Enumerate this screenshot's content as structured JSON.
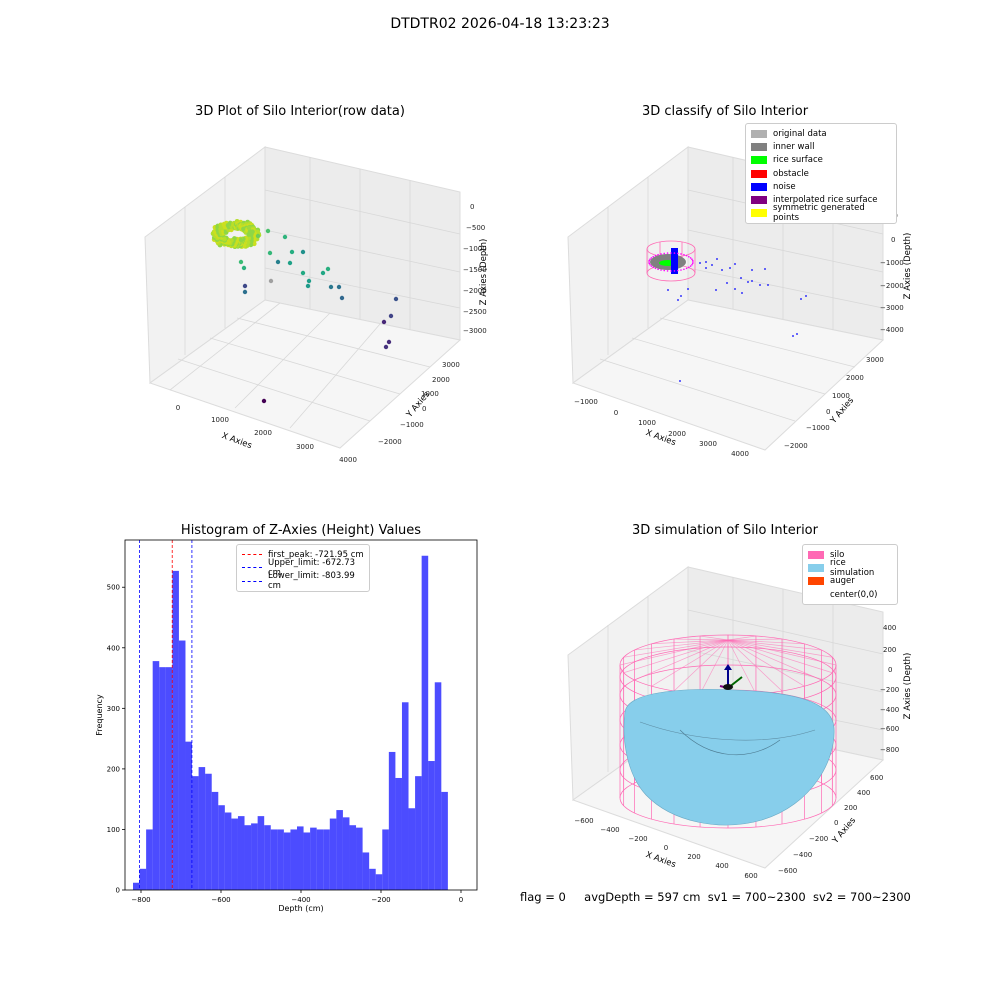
{
  "suptitle": "DTDTR02 2026-04-18 13:23:23",
  "panels": {
    "raw": {
      "title": "3D Plot of Silo Interior(row data)",
      "xlabel": "X Axies",
      "ylabel": "Y Axies",
      "zlabel": "Z Axies (Depth)",
      "xticks": [
        "0",
        "1000",
        "2000",
        "3000",
        "4000"
      ],
      "yticks": [
        "−2000",
        "−1000",
        "0",
        "1000",
        "2000",
        "3000"
      ],
      "zticks": [
        "0",
        "−500",
        "−1000",
        "−1500",
        "−2000",
        "−2500",
        "−3000"
      ]
    },
    "classify": {
      "title": "3D classify of Silo Interior",
      "xlabel": "X Axies",
      "ylabel": "Y Axies",
      "zlabel": "Z Axies (Depth)",
      "xticks": [
        "−1000",
        "0",
        "1000",
        "2000",
        "3000",
        "4000"
      ],
      "yticks": [
        "−2000",
        "−1000",
        "0",
        "1000",
        "2000",
        "3000"
      ],
      "zticks": [
        "1000",
        "0",
        "−1000",
        "−2000",
        "−3000",
        "−4000"
      ],
      "legend": [
        {
          "label": "original data",
          "color": "#b0b0b0"
        },
        {
          "label": "inner wall",
          "color": "#808080"
        },
        {
          "label": "rice surface",
          "color": "#00ff00"
        },
        {
          "label": "obstacle",
          "color": "#ff0000"
        },
        {
          "label": "noise",
          "color": "#0000ff"
        },
        {
          "label": "interpolated rice surface",
          "color": "#800080"
        },
        {
          "label": "symmetric generated points",
          "color": "#ffff00"
        }
      ]
    },
    "simulation": {
      "title": "3D simulation of Silo Interior",
      "xlabel": "X Axies",
      "ylabel": "Y Axies",
      "zlabel": "Z Axies (Depth)",
      "xticks": [
        "−600",
        "−400",
        "−200",
        "0",
        "200",
        "400",
        "600"
      ],
      "yticks": [
        "−600",
        "−400",
        "−200",
        "0",
        "200",
        "400",
        "600"
      ],
      "zticks": [
        "400",
        "200",
        "0",
        "−200",
        "−400",
        "−600",
        "−800"
      ],
      "legend": [
        {
          "label": "silo",
          "color": "#ff69b4"
        },
        {
          "label": "rice simulation",
          "color": "#87ceeb"
        },
        {
          "label": "auger",
          "color": "#ff4500"
        },
        {
          "label": "center(0,0)",
          "color": ""
        }
      ]
    }
  },
  "chart_data": [
    {
      "type": "bar",
      "title": "Histogram of Z-Axies (Height) Values",
      "xlabel": "Depth (cm)",
      "ylabel": "Frequency",
      "xlim": [
        -840,
        40
      ],
      "ylim": [
        0,
        578
      ],
      "xticks": [
        -800,
        -600,
        -400,
        -200,
        0
      ],
      "yticks": [
        0,
        100,
        200,
        300,
        400,
        500
      ],
      "bin_start": -820,
      "bin_width": 16.4,
      "values": [
        12,
        35,
        100,
        378,
        368,
        368,
        527,
        412,
        245,
        188,
        203,
        192,
        162,
        140,
        128,
        118,
        122,
        107,
        110,
        122,
        107,
        100,
        100,
        95,
        100,
        105,
        95,
        103,
        100,
        100,
        118,
        132,
        120,
        107,
        103,
        62,
        35,
        26,
        100,
        228,
        185,
        310,
        135,
        188,
        552,
        213,
        343,
        162
      ],
      "bar_color": "#0000ff",
      "vlines": [
        {
          "label": "first_peak: -721.95 cm",
          "x": -721.95,
          "color": "#ff0000"
        },
        {
          "label": "Upper_limit: -672.73 cm",
          "x": -672.73,
          "color": "#0000ff"
        },
        {
          "label": "Lower_limit: -803.99 cm",
          "x": -803.99,
          "color": "#0000ff"
        }
      ],
      "legend_placement": "top-center"
    }
  ],
  "footer": {
    "flag": "flag = 0",
    "avg": "avgDepth = 597 cm",
    "sv1": "sv1 = 700~2300",
    "sv2": "sv2 = 700~2300"
  }
}
